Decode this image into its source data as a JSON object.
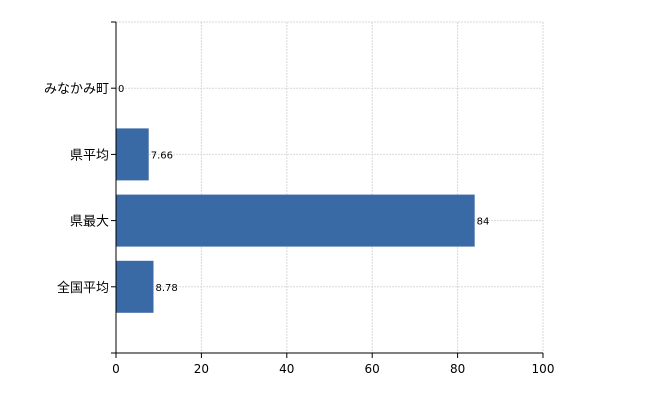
{
  "colors": {
    "bar": "#3a6aa6"
  },
  "chart_data": {
    "type": "bar",
    "orientation": "horizontal",
    "categories": [
      "みなかみ町",
      "県平均",
      "県最大",
      "全国平均"
    ],
    "values": [
      0,
      7.66,
      84,
      8.78
    ],
    "value_labels": [
      "0",
      "7.66",
      "84",
      "8.78"
    ],
    "xlim": [
      0,
      100
    ],
    "xticks": [
      0,
      20,
      40,
      60,
      80,
      100
    ],
    "xtick_labels": [
      "0",
      "20",
      "40",
      "60",
      "80",
      "100"
    ],
    "grid": true,
    "title": "",
    "xlabel": "",
    "ylabel": ""
  }
}
